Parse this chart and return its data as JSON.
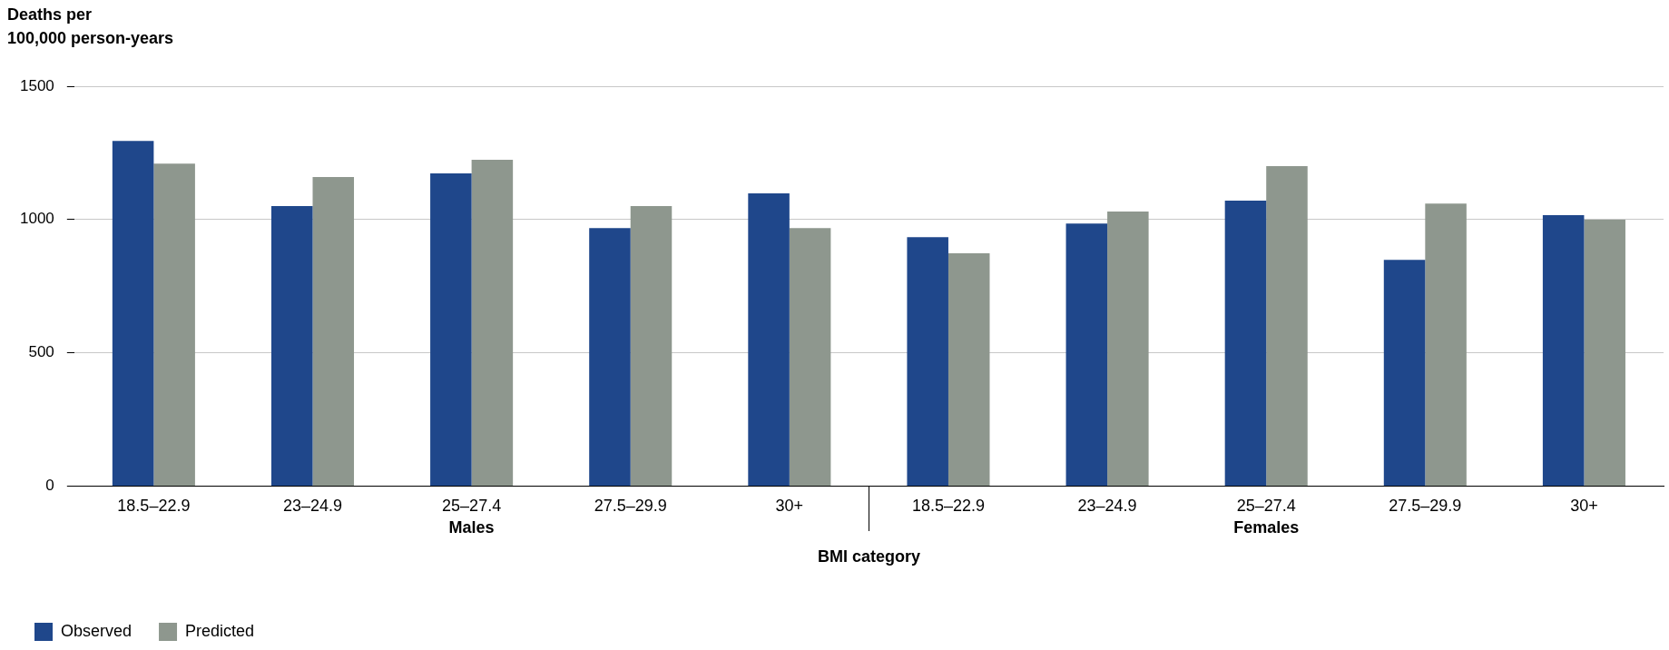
{
  "chart_data": {
    "type": "bar",
    "ylabel": "Deaths per\n100,000 person-years",
    "xlabel": "BMI category",
    "categories": [
      "18.5–22.9",
      "23–24.9",
      "25–27.4",
      "27.5–29.9",
      "30+",
      "18.5–22.9",
      "23–24.9",
      "25–27.4",
      "27.5–29.9",
      "30+"
    ],
    "series": [
      {
        "name": "Observed",
        "color": "#1f478b",
        "values": [
          1295,
          1050,
          1173,
          968,
          1098,
          934,
          985,
          1071,
          849,
          1016
        ]
      },
      {
        "name": "Predicted",
        "color": "#8e978e",
        "values": [
          1210,
          1159,
          1224,
          1050,
          968,
          873,
          1030,
          1200,
          1060,
          999
        ]
      }
    ],
    "annotations": [
      "Males",
      "Females"
    ],
    "ylim": [
      0,
      1500
    ],
    "yticks": [
      0,
      500,
      1000,
      1500
    ],
    "grid": "y",
    "legend": "bottom left"
  }
}
